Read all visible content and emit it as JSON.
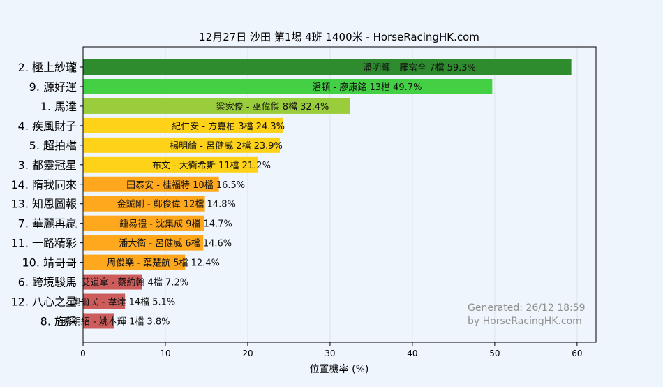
{
  "chart_data": {
    "type": "bar",
    "orientation": "horizontal",
    "title": "12月27日  沙田  第1場  4班  1400米 - HorseRacingHK.com",
    "xlabel": "位置機率 (%)",
    "ylabel": "",
    "xlim": [
      0,
      62.3
    ],
    "xticks": [
      0,
      10,
      20,
      30,
      40,
      50,
      60
    ],
    "grid": true,
    "categories": [
      "2. 極上紗瓏",
      "9. 源好運",
      "1. 馬達",
      "4. 疾風財子",
      "5. 超拍檔",
      "3. 都靈冠星",
      "14. 隋我同來",
      "13. 知恩圖報",
      "7. 華麗再贏",
      "11. 一路精彩",
      "10. 靖哥哥",
      "6. 跨境駿馬",
      "12. 八心之星",
      "8. 旌採"
    ],
    "values": [
      59.3,
      49.7,
      32.4,
      24.3,
      23.9,
      21.2,
      16.5,
      14.8,
      14.7,
      14.6,
      12.4,
      7.2,
      5.1,
      3.8
    ],
    "bar_labels": [
      "潘明輝 - 羅富全 7檔  59.3%",
      "潘頓 - 廖康銘 13檔  49.7%",
      "梁家俊 - 巫偉傑 8檔  32.4%",
      "紀仁安 - 方嘉柏 3檔  24.3%",
      "楊明綸 - 呂健威 2檔  23.9%",
      "布文 - 大衛希斯 11檔  21.2%",
      "田泰安 - 桂福特 10檔  16.5%",
      "金誠剛 - 鄭俊偉 12檔  14.8%",
      "鍾易禮 - 沈集成 9檔  14.7%",
      "潘大衛 - 呂健威 6檔  14.6%",
      "周俊樂 - 葉楚航 5檔  12.4%",
      "艾道拿 - 蔡約翰 4檔  7.2%",
      "奧爾民 - 韋達 14檔  5.1%",
      "蔡明紹 - 姚本輝 1檔  3.8%"
    ],
    "bar_colors": [
      "#2e8b2e",
      "#44d044",
      "#9acd3c",
      "#ffd21a",
      "#ffd21a",
      "#ffd21a",
      "#ffa81e",
      "#ffa81e",
      "#ffa81e",
      "#ffa81e",
      "#ffa81e",
      "#cd5c5c",
      "#cd5c5c",
      "#cd5c5c"
    ],
    "watermark": [
      "Generated: 26/12 18:59",
      "by HorseRacingHK.com"
    ]
  },
  "colors": {
    "background": "#eef5fd",
    "plot_background": "#eef5fd",
    "grid": "#dde3ea",
    "axis": "#000000",
    "watermark": "#909090"
  }
}
